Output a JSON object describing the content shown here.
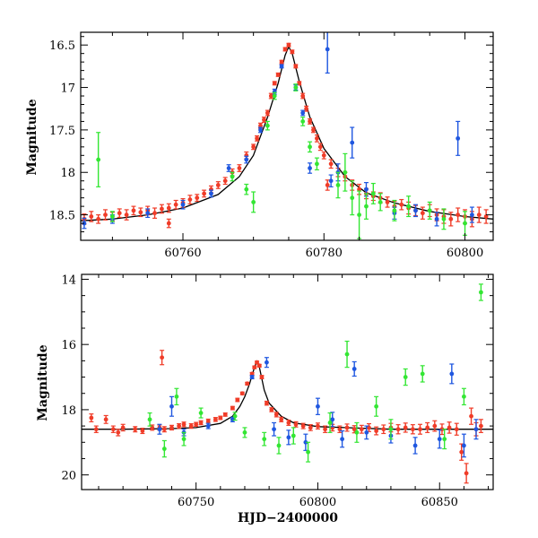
{
  "chart_data": [
    {
      "type": "scatter",
      "panel": "top",
      "xlabel": "",
      "ylabel": "Magnitude",
      "xlim": [
        60745.5,
        60804
      ],
      "ylim": [
        18.8,
        16.35
      ],
      "y_inverted": true,
      "xticks_major": [
        60760,
        60780,
        60800
      ],
      "xticks_minor_step": 5,
      "yticks_major": [
        16.5,
        17,
        17.5,
        18,
        18.5
      ],
      "yticks_minor_step": 0.1,
      "grid": false,
      "colors": {
        "blue": "#1f57e0",
        "green": "#33e633",
        "red": "#f03c28",
        "model": "#000000"
      },
      "model": {
        "name": "",
        "x": [
          60745.5,
          60750,
          60755,
          60760,
          60765,
          60768,
          60770,
          60772,
          60773.5,
          60774.5,
          60775,
          60775.5,
          60776.5,
          60778,
          60780,
          60783,
          60786,
          60790,
          60795,
          60800,
          60804
        ],
        "y": [
          18.57,
          18.55,
          18.5,
          18.42,
          18.26,
          18.05,
          17.8,
          17.35,
          16.95,
          16.62,
          16.52,
          16.6,
          16.93,
          17.35,
          17.72,
          18.05,
          18.24,
          18.36,
          18.46,
          18.52,
          18.55
        ]
      },
      "series": [
        {
          "color": "#f03c28",
          "x": [
            60746,
            60747,
            60748,
            60749,
            60750,
            60751,
            60752,
            60753,
            60754,
            60755,
            60756,
            60757,
            60758,
            60759,
            60760,
            60761,
            60762,
            60763,
            60764,
            60765,
            60766,
            60767,
            60768,
            60769,
            60770,
            60770.5,
            60771,
            60771.5,
            60772,
            60772.5,
            60773,
            60773.5,
            60774,
            60774.5,
            60775,
            60775.5,
            60776,
            60776.5,
            60777,
            60777.5,
            60778,
            60778.5,
            60779,
            60779.5,
            60780,
            60781,
            60782,
            60783,
            60784,
            60785,
            60786,
            60787,
            60788,
            60789,
            60790,
            60791,
            60792,
            60793,
            60794,
            60795,
            60796,
            60797,
            60798,
            60799,
            60800,
            60801,
            60802,
            60803,
            60758,
            60780.5
          ],
          "y": [
            18.55,
            18.52,
            18.55,
            18.5,
            18.52,
            18.48,
            18.5,
            18.45,
            18.47,
            18.45,
            18.48,
            18.43,
            18.42,
            18.38,
            18.36,
            18.32,
            18.3,
            18.25,
            18.2,
            18.15,
            18.1,
            18.0,
            17.95,
            17.8,
            17.7,
            17.6,
            17.45,
            17.38,
            17.3,
            17.1,
            16.95,
            16.85,
            16.7,
            16.55,
            16.5,
            16.58,
            16.75,
            16.95,
            17.1,
            17.25,
            17.4,
            17.5,
            17.6,
            17.7,
            17.8,
            17.9,
            18.0,
            18.05,
            18.15,
            18.2,
            18.25,
            18.28,
            18.3,
            18.35,
            18.4,
            18.38,
            18.42,
            18.45,
            18.48,
            18.45,
            18.5,
            18.52,
            18.55,
            18.5,
            18.52,
            18.55,
            18.5,
            18.52,
            18.6,
            18.15
          ],
          "err": [
            0.06,
            0.06,
            0.05,
            0.06,
            0.05,
            0.05,
            0.06,
            0.05,
            0.05,
            0.05,
            0.06,
            0.05,
            0.05,
            0.05,
            0.05,
            0.05,
            0.04,
            0.04,
            0.04,
            0.04,
            0.04,
            0.04,
            0.04,
            0.04,
            0.03,
            0.03,
            0.03,
            0.03,
            0.03,
            0.03,
            0.02,
            0.02,
            0.02,
            0.02,
            0.02,
            0.02,
            0.02,
            0.02,
            0.03,
            0.03,
            0.03,
            0.03,
            0.04,
            0.04,
            0.04,
            0.05,
            0.05,
            0.05,
            0.06,
            0.06,
            0.06,
            0.05,
            0.06,
            0.06,
            0.06,
            0.06,
            0.07,
            0.06,
            0.07,
            0.07,
            0.07,
            0.08,
            0.08,
            0.08,
            0.08,
            0.09,
            0.09,
            0.08,
            0.05,
            0.06
          ]
        },
        {
          "color": "#1f57e0",
          "x": [
            60746,
            60750,
            60755,
            60760,
            60764,
            60766.5,
            60769,
            60771,
            60773,
            60774,
            60776,
            60777,
            60778,
            60780.5,
            60781,
            60782,
            60784,
            60786,
            60790,
            60793,
            60796,
            60799,
            60801
          ],
          "y": [
            18.6,
            18.55,
            18.48,
            18.38,
            18.25,
            17.95,
            17.85,
            17.5,
            17.05,
            16.75,
            17.0,
            17.3,
            17.95,
            16.55,
            18.1,
            18.0,
            17.65,
            18.2,
            18.48,
            18.45,
            18.55,
            17.6,
            18.5
          ],
          "err": [
            0.06,
            0.05,
            0.05,
            0.05,
            0.04,
            0.04,
            0.04,
            0.03,
            0.03,
            0.02,
            0.03,
            0.03,
            0.06,
            0.28,
            0.07,
            0.1,
            0.18,
            0.08,
            0.07,
            0.07,
            0.08,
            0.2,
            0.09
          ]
        },
        {
          "color": "#33e633",
          "x": [
            60748,
            60750,
            60767,
            60769,
            60770,
            60772,
            60773,
            60776,
            60777,
            60778,
            60779,
            60782,
            60783,
            60784,
            60785,
            60786,
            60787,
            60788,
            60790,
            60792,
            60795,
            60797,
            60800
          ],
          "y": [
            17.85,
            18.52,
            18.05,
            18.2,
            18.35,
            17.45,
            17.1,
            17.0,
            17.4,
            17.7,
            17.9,
            18.15,
            18.0,
            18.3,
            18.5,
            18.4,
            18.25,
            18.35,
            18.45,
            18.4,
            18.45,
            18.55,
            18.6
          ],
          "err": [
            0.32,
            0.06,
            0.05,
            0.06,
            0.12,
            0.05,
            0.04,
            0.04,
            0.05,
            0.06,
            0.07,
            0.15,
            0.22,
            0.2,
            0.28,
            0.15,
            0.12,
            0.1,
            0.12,
            0.12,
            0.1,
            0.12,
            0.14
          ]
        }
      ]
    },
    {
      "type": "scatter",
      "panel": "bottom",
      "xlabel": "HJD−2400000",
      "ylabel": "Magnitude",
      "xlim": [
        60703,
        60872
      ],
      "ylim": [
        20.45,
        13.85
      ],
      "y_inverted": true,
      "xticks_major": [
        60750,
        60800,
        60850
      ],
      "xticks_minor_step": 10,
      "yticks_major": [
        14,
        16,
        18,
        20
      ],
      "yticks_minor_step": 0.5,
      "grid": false,
      "colors": {
        "blue": "#1f57e0",
        "green": "#33e633",
        "red": "#f03c28",
        "model": "#000000"
      },
      "model": {
        "name": "",
        "x": [
          60703,
          60720,
          60740,
          60750,
          60760,
          60765,
          60768,
          60770,
          60772,
          60774,
          60775,
          60776,
          60778,
          60780,
          60785,
          60790,
          60800,
          60830,
          60872
        ],
        "y": [
          18.6,
          18.6,
          18.58,
          18.55,
          18.42,
          18.2,
          17.9,
          17.6,
          17.2,
          16.7,
          16.52,
          16.7,
          17.4,
          17.8,
          18.2,
          18.4,
          18.52,
          18.6,
          18.6
        ]
      },
      "series": [
        {
          "color": "#f03c28",
          "x": [
            60707,
            60709,
            60713,
            60716,
            60718,
            60720,
            60725,
            60728,
            60732,
            60735,
            60737,
            60740,
            60743,
            60745,
            60748,
            60750,
            60752,
            60755,
            60758,
            60760,
            60762,
            60765,
            60767,
            60769,
            60771,
            60773,
            60774,
            60775,
            60776,
            60777,
            60779,
            60781,
            60783,
            60785,
            60788,
            60791,
            60794,
            60797,
            60800,
            60803,
            60806,
            60809,
            60812,
            60815,
            60818,
            60821,
            60824,
            60827,
            60830,
            60833,
            60836,
            60839,
            60842,
            60845,
            60848,
            60851,
            60854,
            60857,
            60859,
            60861,
            60863,
            60865,
            60867,
            60736
          ],
          "y": [
            18.25,
            18.6,
            18.3,
            18.6,
            18.7,
            18.55,
            18.6,
            18.65,
            18.55,
            18.55,
            18.6,
            18.55,
            18.5,
            18.45,
            18.5,
            18.45,
            18.4,
            18.35,
            18.3,
            18.25,
            18.15,
            17.95,
            17.7,
            17.5,
            17.2,
            16.9,
            16.7,
            16.55,
            16.65,
            17.0,
            17.8,
            18.0,
            18.15,
            18.3,
            18.4,
            18.45,
            18.5,
            18.55,
            18.5,
            18.6,
            18.55,
            18.6,
            18.55,
            18.6,
            18.6,
            18.55,
            18.65,
            18.6,
            18.55,
            18.6,
            18.55,
            18.6,
            18.6,
            18.55,
            18.5,
            18.6,
            18.55,
            18.6,
            19.3,
            19.95,
            18.2,
            18.6,
            18.5,
            16.4
          ],
          "err": [
            0.12,
            0.1,
            0.12,
            0.1,
            0.1,
            0.1,
            0.08,
            0.08,
            0.08,
            0.08,
            0.08,
            0.07,
            0.07,
            0.07,
            0.07,
            0.06,
            0.06,
            0.06,
            0.06,
            0.05,
            0.05,
            0.05,
            0.05,
            0.04,
            0.04,
            0.04,
            0.04,
            0.04,
            0.04,
            0.05,
            0.06,
            0.06,
            0.07,
            0.07,
            0.08,
            0.08,
            0.08,
            0.09,
            0.09,
            0.1,
            0.1,
            0.1,
            0.11,
            0.11,
            0.12,
            0.12,
            0.12,
            0.13,
            0.13,
            0.14,
            0.14,
            0.14,
            0.15,
            0.15,
            0.16,
            0.16,
            0.17,
            0.18,
            0.25,
            0.3,
            0.25,
            0.2,
            0.2,
            0.22
          ]
        },
        {
          "color": "#1f57e0",
          "x": [
            60735,
            60740,
            60745,
            60755,
            60765,
            60773,
            60779,
            60782,
            60788,
            60795,
            60800,
            60806,
            60810,
            60815,
            60820,
            60830,
            60840,
            60850,
            60855,
            60860,
            60865
          ],
          "y": [
            18.6,
            17.9,
            18.7,
            18.5,
            18.3,
            17.0,
            16.55,
            18.6,
            18.85,
            19.0,
            17.9,
            18.3,
            18.9,
            16.75,
            18.7,
            18.8,
            19.1,
            18.9,
            16.9,
            19.1,
            18.6
          ],
          "err": [
            0.15,
            0.3,
            0.1,
            0.08,
            0.07,
            0.05,
            0.15,
            0.2,
            0.22,
            0.25,
            0.25,
            0.22,
            0.25,
            0.22,
            0.2,
            0.22,
            0.25,
            0.28,
            0.3,
            0.35,
            0.3
          ]
        },
        {
          "color": "#33e633",
          "x": [
            60731,
            60737,
            60742,
            60745,
            60752,
            60766,
            60770,
            60778,
            60784,
            60790,
            60796,
            60805,
            60812,
            60816,
            60824,
            60830,
            60836,
            60843,
            60852,
            60860,
            60867
          ],
          "y": [
            18.3,
            19.2,
            17.6,
            18.9,
            18.1,
            18.2,
            18.7,
            18.9,
            19.1,
            18.8,
            19.3,
            18.4,
            16.3,
            18.7,
            17.9,
            18.6,
            17.0,
            16.9,
            18.9,
            17.6,
            14.4
          ],
          "err": [
            0.2,
            0.25,
            0.25,
            0.2,
            0.15,
            0.12,
            0.15,
            0.2,
            0.25,
            0.25,
            0.3,
            0.3,
            0.4,
            0.3,
            0.3,
            0.3,
            0.25,
            0.25,
            0.3,
            0.25,
            0.25
          ]
        }
      ]
    }
  ]
}
